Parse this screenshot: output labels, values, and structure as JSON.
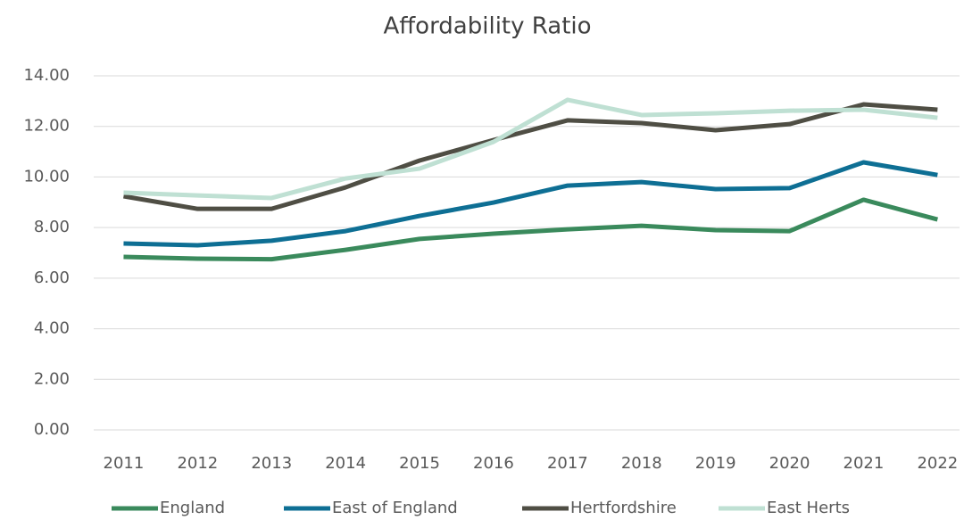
{
  "chart_data": {
    "type": "line",
    "title": "Affordability Ratio",
    "categories": [
      "2011",
      "2012",
      "2013",
      "2014",
      "2015",
      "2016",
      "2017",
      "2018",
      "2019",
      "2020",
      "2021",
      "2022"
    ],
    "series": [
      {
        "name": "England",
        "color": "#3a8a5c",
        "values": [
          6.84,
          6.77,
          6.75,
          7.12,
          7.55,
          7.76,
          7.93,
          8.07,
          7.9,
          7.86,
          9.1,
          8.32
        ]
      },
      {
        "name": "East of England",
        "color": "#0e6f94",
        "values": [
          7.37,
          7.3,
          7.48,
          7.86,
          8.46,
          8.99,
          9.66,
          9.8,
          9.52,
          9.56,
          10.58,
          10.08
        ]
      },
      {
        "name": "Hertfordshire",
        "color": "#4f4e44",
        "values": [
          9.24,
          8.74,
          8.74,
          9.59,
          10.65,
          11.46,
          12.24,
          12.13,
          11.85,
          12.09,
          12.87,
          12.66
        ]
      },
      {
        "name": "East Herts",
        "color": "#bfe0d3",
        "values": [
          9.38,
          9.27,
          9.17,
          9.94,
          10.33,
          11.39,
          13.05,
          12.45,
          12.52,
          12.62,
          12.66,
          12.34
        ]
      }
    ],
    "ylim": [
      0,
      14
    ],
    "yticks": [
      {
        "value": 0,
        "label": "0.00"
      },
      {
        "value": 2,
        "label": "2.00"
      },
      {
        "value": 4,
        "label": "4.00"
      },
      {
        "value": 6,
        "label": "6.00"
      },
      {
        "value": 8,
        "label": "8.00"
      },
      {
        "value": 10,
        "label": "10.00"
      },
      {
        "value": 12,
        "label": "12.00"
      },
      {
        "value": 14,
        "label": "14.00"
      }
    ],
    "grid": true,
    "legend": "bottom"
  }
}
